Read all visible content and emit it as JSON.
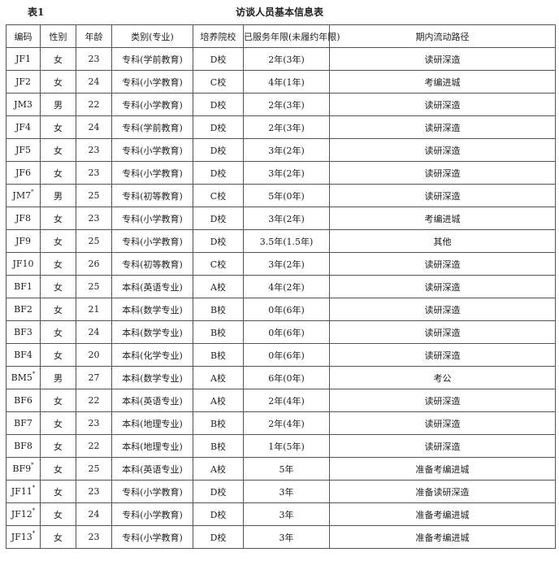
{
  "caption": {
    "number": "表1",
    "title": "访谈人员基本信息表"
  },
  "headers": [
    "编码",
    "性别",
    "年龄",
    "类别(专业)",
    "培养院校",
    "已服务年限(未履约年限)",
    "期内流动路径"
  ],
  "rows": [
    {
      "code": "JF1",
      "mark": "",
      "gender": "女",
      "age": "23",
      "category": "专科(学前教育)",
      "school": "D校",
      "service": "2年(3年)",
      "path": "读研深造"
    },
    {
      "code": "JF2",
      "mark": "",
      "gender": "女",
      "age": "24",
      "category": "专科(小学教育)",
      "school": "C校",
      "service": "4年(1年)",
      "path": "考编进城"
    },
    {
      "code": "JM3",
      "mark": "",
      "gender": "男",
      "age": "22",
      "category": "专科(小学教育)",
      "school": "D校",
      "service": "2年(3年)",
      "path": "读研深造"
    },
    {
      "code": "JF4",
      "mark": "",
      "gender": "女",
      "age": "24",
      "category": "专科(学前教育)",
      "school": "D校",
      "service": "2年(3年)",
      "path": "读研深造"
    },
    {
      "code": "JF5",
      "mark": "",
      "gender": "女",
      "age": "23",
      "category": "专科(小学教育)",
      "school": "D校",
      "service": "3年(2年)",
      "path": "读研深造"
    },
    {
      "code": "JF6",
      "mark": "",
      "gender": "女",
      "age": "23",
      "category": "专科(小学教育)",
      "school": "D校",
      "service": "3年(2年)",
      "path": "读研深造"
    },
    {
      "code": "JM7",
      "mark": "*",
      "gender": "男",
      "age": "25",
      "category": "专科(初等教育)",
      "school": "C校",
      "service": "5年(0年)",
      "path": "读研深造"
    },
    {
      "code": "JF8",
      "mark": "",
      "gender": "女",
      "age": "23",
      "category": "专科(小学教育)",
      "school": "D校",
      "service": "3年(2年)",
      "path": "考编进城"
    },
    {
      "code": "JF9",
      "mark": "",
      "gender": "女",
      "age": "25",
      "category": "专科(小学教育)",
      "school": "D校",
      "service": "3.5年(1.5年)",
      "path": "其他"
    },
    {
      "code": "JF10",
      "mark": "",
      "gender": "女",
      "age": "26",
      "category": "专科(初等教育)",
      "school": "C校",
      "service": "3年(2年)",
      "path": "读研深造"
    },
    {
      "code": "BF1",
      "mark": "",
      "gender": "女",
      "age": "25",
      "category": "本科(英语专业)",
      "school": "A校",
      "service": "4年(2年)",
      "path": "读研深造"
    },
    {
      "code": "BF2",
      "mark": "",
      "gender": "女",
      "age": "21",
      "category": "本科(数学专业)",
      "school": "B校",
      "service": "0年(6年)",
      "path": "读研深造"
    },
    {
      "code": "BF3",
      "mark": "",
      "gender": "女",
      "age": "24",
      "category": "本科(数学专业)",
      "school": "B校",
      "service": "0年(6年)",
      "path": "读研深造"
    },
    {
      "code": "BF4",
      "mark": "",
      "gender": "女",
      "age": "20",
      "category": "本科(化学专业)",
      "school": "B校",
      "service": "0年(6年)",
      "path": "读研深造"
    },
    {
      "code": "BM5",
      "mark": "*",
      "gender": "男",
      "age": "27",
      "category": "本科(数学专业)",
      "school": "A校",
      "service": "6年(0年)",
      "path": "考公"
    },
    {
      "code": "BF6",
      "mark": "",
      "gender": "女",
      "age": "22",
      "category": "本科(英语专业)",
      "school": "A校",
      "service": "2年(4年)",
      "path": "读研深造"
    },
    {
      "code": "BF7",
      "mark": "",
      "gender": "女",
      "age": "23",
      "category": "本科(地理专业)",
      "school": "B校",
      "service": "2年(4年)",
      "path": "读研深造"
    },
    {
      "code": "BF8",
      "mark": "",
      "gender": "女",
      "age": "22",
      "category": "本科(地理专业)",
      "school": "B校",
      "service": "1年(5年)",
      "path": "读研深造"
    },
    {
      "code": "BF9",
      "mark": "*",
      "gender": "女",
      "age": "25",
      "category": "本科(英语专业)",
      "school": "A校",
      "service": "5年",
      "path": "准备考编进城"
    },
    {
      "code": "JF11",
      "mark": "*",
      "gender": "女",
      "age": "23",
      "category": "专科(小学教育)",
      "school": "D校",
      "service": "3年",
      "path": "准备读研深造"
    },
    {
      "code": "JF12",
      "mark": "*",
      "gender": "女",
      "age": "24",
      "category": "专科(小学教育)",
      "school": "D校",
      "service": "3年",
      "path": "准备考编进城"
    },
    {
      "code": "JF13",
      "mark": "*",
      "gender": "女",
      "age": "23",
      "category": "专科(小学教育)",
      "school": "D校",
      "service": "3年",
      "path": "准备考编进城"
    }
  ]
}
